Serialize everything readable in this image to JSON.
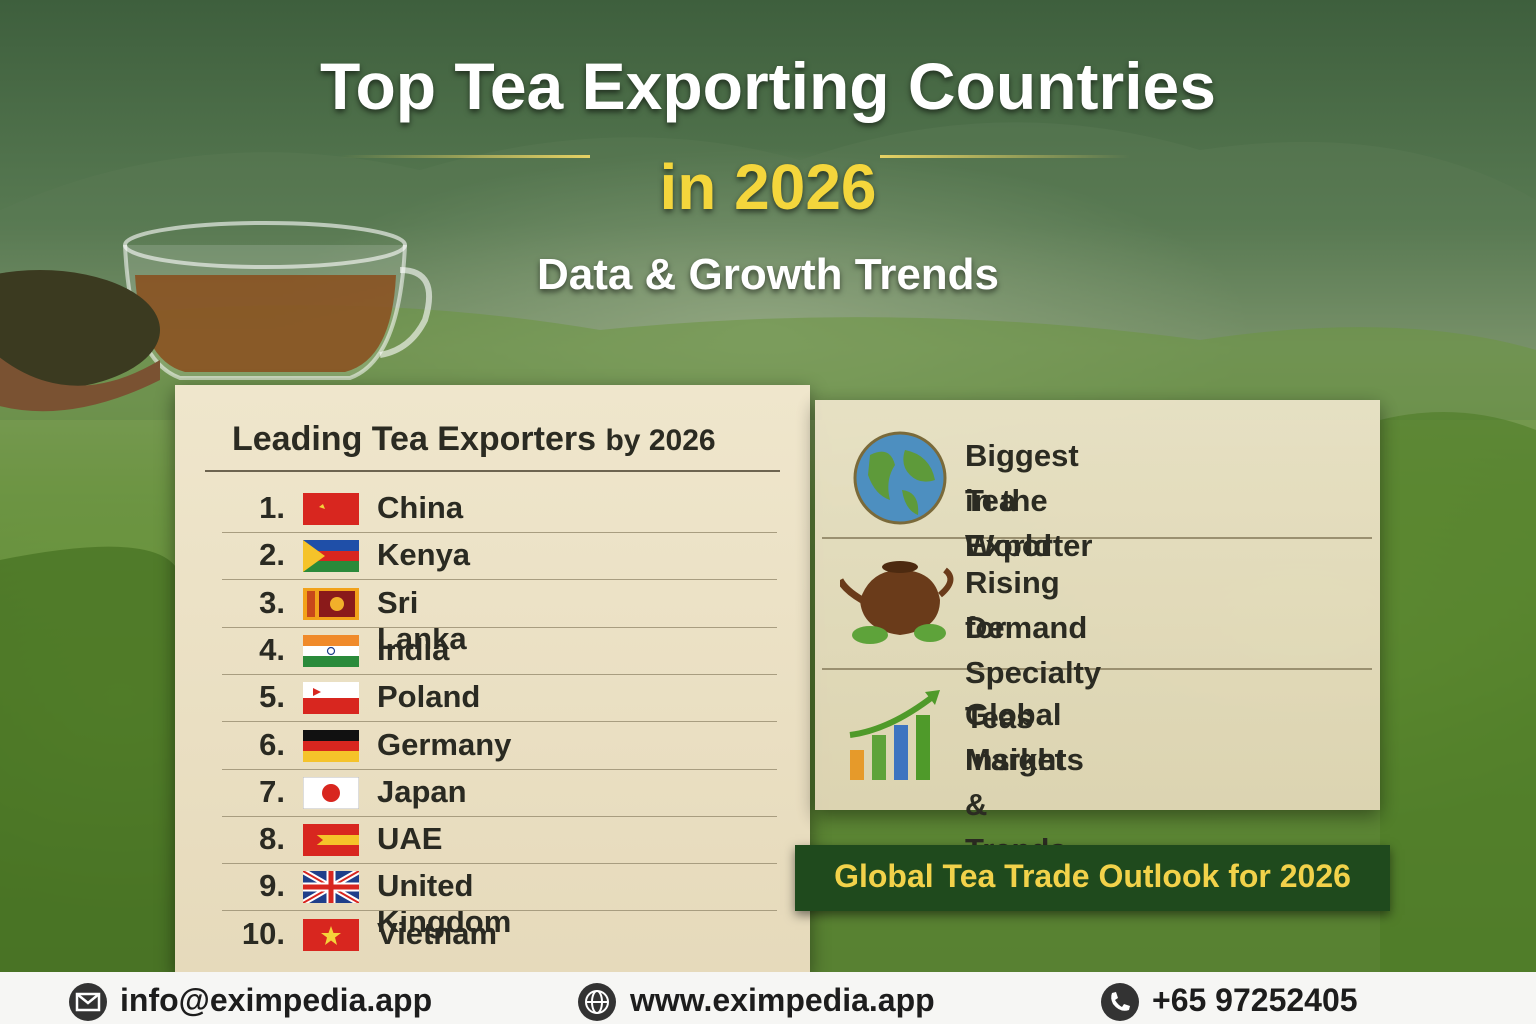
{
  "header": {
    "title": "Top Tea Exporting Countries",
    "title_line2": "in 2026",
    "subtitle": "Data & Growth Trends"
  },
  "ranking": {
    "heading": "Leading Tea Exporters",
    "heading_suffix": "by 2026",
    "items": [
      {
        "rank": "1.",
        "country": "China"
      },
      {
        "rank": "2.",
        "country": "Kenya"
      },
      {
        "rank": "3.",
        "country": "Sri Lanka"
      },
      {
        "rank": "4.",
        "country": "India"
      },
      {
        "rank": "5.",
        "country": "Poland"
      },
      {
        "rank": "6.",
        "country": "Germany"
      },
      {
        "rank": "7.",
        "country": "Japan"
      },
      {
        "rank": "8.",
        "country": "UAE"
      },
      {
        "rank": "9.",
        "country": "United Kingdom"
      },
      {
        "rank": "10.",
        "country": "Vietnam"
      }
    ]
  },
  "highlights": [
    {
      "line1": "Biggest Tea Exporter",
      "line2": "in the World"
    },
    {
      "line1": "Rising Demand",
      "line2": "for Specialty Teas"
    },
    {
      "line1": "Global Market",
      "line2": "Insights & Trends"
    }
  ],
  "banner": "Global Tea Trade Outlook for 2026",
  "footer": {
    "email": "info@eximpedia.app",
    "website": "www.eximpedia.app",
    "phone": "+65 97252405"
  }
}
